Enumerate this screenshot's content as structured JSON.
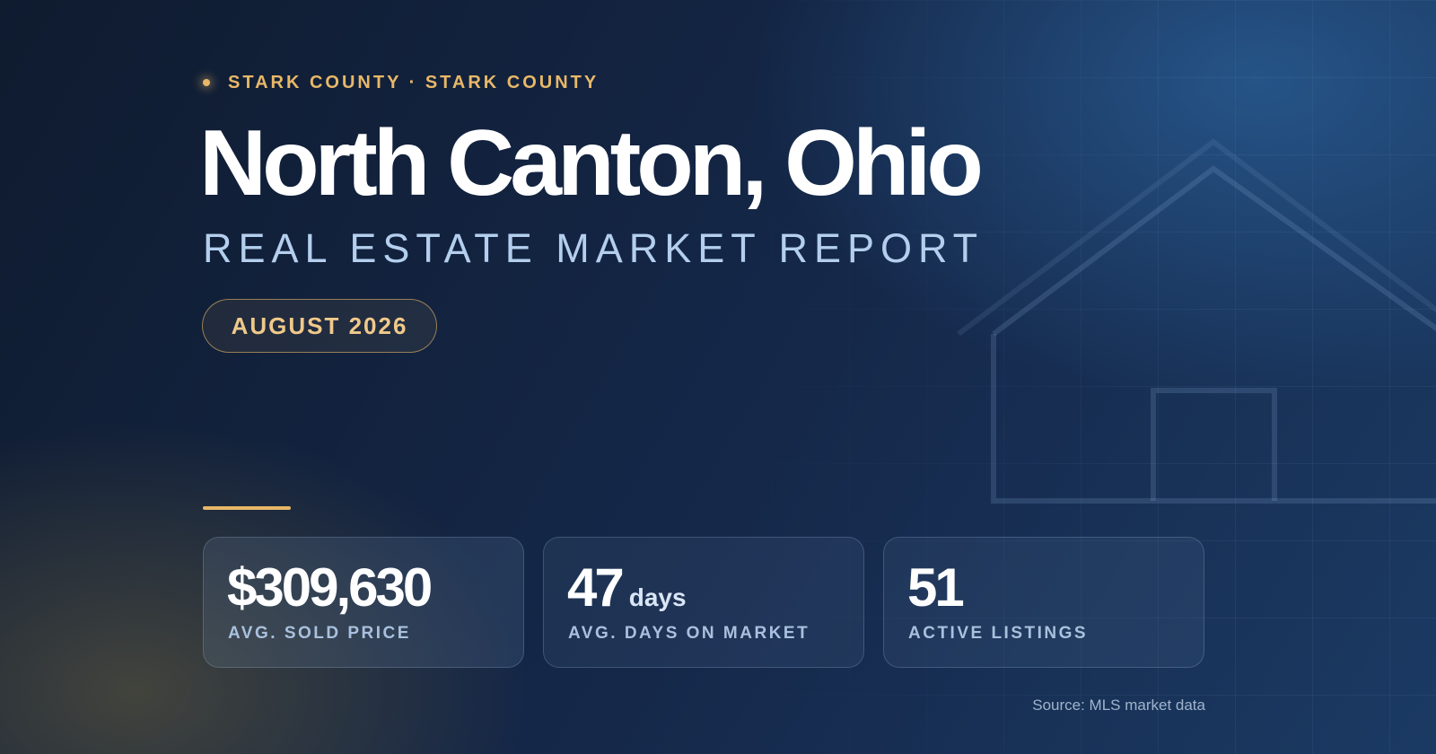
{
  "header": {
    "eyebrow": "STARK COUNTY · STARK COUNTY",
    "title": "North Canton, Ohio",
    "subtitle": "REAL ESTATE MARKET REPORT",
    "date": "AUGUST 2026"
  },
  "stats": [
    {
      "value": "$309,630",
      "unit": "",
      "label": "AVG. SOLD PRICE"
    },
    {
      "value": "47",
      "unit": "days",
      "label": "AVG. DAYS ON MARKET"
    },
    {
      "value": "51",
      "unit": "",
      "label": "ACTIVE LISTINGS"
    }
  ],
  "footer": {
    "source": "Source: MLS market data"
  },
  "colors": {
    "accent": "#e8b868",
    "subtitle": "#b4cfee",
    "background": "#13243f"
  }
}
